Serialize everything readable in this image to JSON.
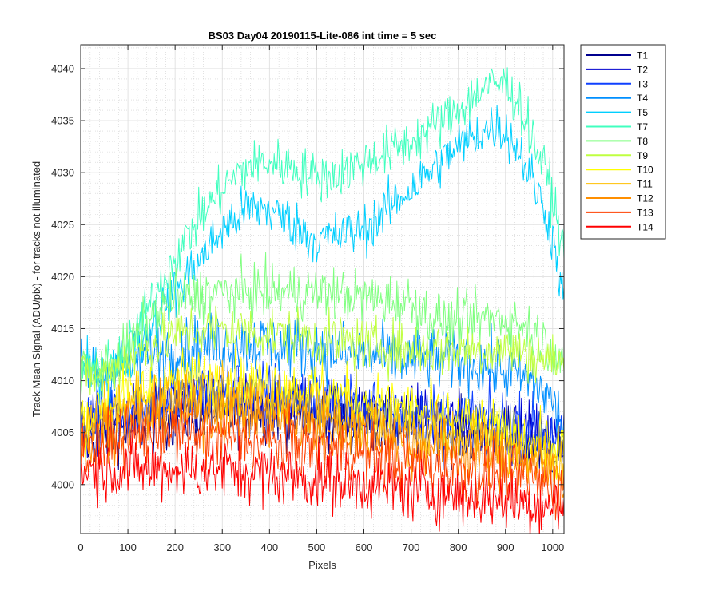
{
  "chart_data": {
    "type": "line",
    "title": "BS03 Day04 20190115-Lite-086 int time = 5 sec",
    "xlabel": "Pixels",
    "ylabel": "Track Mean Signal (ADU/pix) - for tracks not illuminated",
    "xlim": [
      0,
      1024
    ],
    "ylim": [
      3995.3,
      4042.3
    ],
    "xticks": [
      0,
      100,
      200,
      300,
      400,
      500,
      600,
      700,
      800,
      900,
      1000
    ],
    "yticks": [
      4000,
      4005,
      4010,
      4015,
      4020,
      4025,
      4030,
      4035,
      4040
    ],
    "grid": "major and minor",
    "legend_position": "outside right",
    "series": [
      {
        "name": "T1",
        "color": "#00008f",
        "noise": 1.5,
        "x": [
          0,
          50,
          100,
          200,
          300,
          400,
          500,
          600,
          700,
          800,
          900,
          1000,
          1024
        ],
        "y": [
          4004,
          4005,
          4005.5,
          4006.5,
          4007,
          4007,
          4006.5,
          4006,
          4005.5,
          4005,
          4004.5,
          4003.5,
          4003
        ]
      },
      {
        "name": "T2",
        "color": "#0000cf",
        "noise": 1.5,
        "x": [
          0,
          50,
          100,
          200,
          300,
          400,
          500,
          600,
          700,
          800,
          900,
          1000,
          1024
        ],
        "y": [
          4005,
          4006,
          4006.5,
          4007.5,
          4008,
          4008,
          4007.5,
          4007,
          4006.5,
          4006,
          4005.5,
          4004.5,
          4004
        ]
      },
      {
        "name": "T3",
        "color": "#0f40ff",
        "noise": 1.5,
        "x": [
          0,
          50,
          100,
          200,
          300,
          400,
          500,
          600,
          700,
          800,
          900,
          1000,
          1024
        ],
        "y": [
          4006,
          4007,
          4007.5,
          4008.5,
          4009,
          4009,
          4008,
          4007.5,
          4007,
          4006.5,
          4006,
          4005,
          4004.5
        ]
      },
      {
        "name": "T4",
        "color": "#008fff",
        "noise": 1.5,
        "x": [
          0,
          50,
          100,
          150,
          200,
          300,
          400,
          500,
          600,
          700,
          800,
          900,
          950,
          1000,
          1024
        ],
        "y": [
          4011,
          4010.5,
          4011.5,
          4012.5,
          4013,
          4013.5,
          4013.5,
          4013,
          4012.5,
          4012,
          4012,
          4011,
          4010,
          4008,
          4005.5
        ]
      },
      {
        "name": "T5",
        "color": "#00cfff",
        "noise": 1.2,
        "x": [
          0,
          50,
          100,
          150,
          200,
          250,
          300,
          350,
          400,
          450,
          500,
          550,
          600,
          650,
          700,
          750,
          800,
          850,
          880,
          900,
          930,
          960,
          990,
          1010,
          1024
        ],
        "y": [
          4011,
          4011,
          4012,
          4015.5,
          4018.5,
          4021.5,
          4024.5,
          4026.5,
          4026.5,
          4025,
          4023.5,
          4024,
          4024.5,
          4026.5,
          4028.5,
          4030.5,
          4032.5,
          4034,
          4034.5,
          4034,
          4032,
          4029,
          4025.5,
          4021.5,
          4017
        ]
      },
      {
        "name": "T7",
        "color": "#40ffbf",
        "noise": 1.2,
        "x": [
          0,
          50,
          100,
          150,
          200,
          250,
          300,
          350,
          400,
          450,
          500,
          550,
          600,
          650,
          700,
          750,
          800,
          850,
          880,
          900,
          930,
          960,
          990,
          1010,
          1024
        ],
        "y": [
          4011,
          4011,
          4013,
          4017.5,
          4022,
          4025.5,
          4028.5,
          4030.5,
          4031,
          4030.5,
          4029.5,
          4030,
          4031,
          4032,
          4033,
          4034.5,
          4036,
          4038,
          4038.5,
          4038.5,
          4036.5,
          4033,
          4029.5,
          4025.5,
          4022
        ]
      },
      {
        "name": "T8",
        "color": "#7fff7f",
        "noise": 1.3,
        "x": [
          0,
          50,
          100,
          150,
          200,
          300,
          400,
          500,
          600,
          700,
          750,
          800,
          850,
          900,
          950,
          1000,
          1024
        ],
        "y": [
          4011,
          4011,
          4013,
          4016,
          4018,
          4018.5,
          4018.5,
          4018.5,
          4018,
          4017.5,
          4016,
          4015.5,
          4016,
          4016,
          4015,
          4013,
          4012
        ]
      },
      {
        "name": "T9",
        "color": "#bfff40",
        "noise": 1.3,
        "x": [
          0,
          50,
          100,
          150,
          200,
          300,
          400,
          500,
          600,
          700,
          800,
          900,
          950,
          1000,
          1024
        ],
        "y": [
          4010.5,
          4010.5,
          4012,
          4013.5,
          4014.5,
          4015,
          4014.5,
          4014,
          4013.5,
          4013,
          4013,
          4013,
          4012.5,
          4012,
          4011.5
        ]
      },
      {
        "name": "T10",
        "color": "#ffff00",
        "noise": 1.5,
        "x": [
          0,
          50,
          100,
          200,
          300,
          400,
          500,
          600,
          700,
          800,
          900,
          1000,
          1024
        ],
        "y": [
          4006,
          4007.5,
          4008.5,
          4010,
          4010,
          4009.5,
          4009,
          4008,
          4007,
          4006,
          4005,
          4003.5,
          4003
        ]
      },
      {
        "name": "T11",
        "color": "#ffbf00",
        "noise": 1.5,
        "x": [
          0,
          50,
          100,
          200,
          300,
          400,
          500,
          600,
          700,
          800,
          900,
          1000,
          1024
        ],
        "y": [
          4005,
          4006.5,
          4007.5,
          4008.5,
          4008.5,
          4008,
          4007,
          4006,
          4005,
          4004.5,
          4003.5,
          4002.5,
          4002
        ]
      },
      {
        "name": "T12",
        "color": "#ff8f00",
        "noise": 1.5,
        "x": [
          0,
          50,
          100,
          200,
          300,
          400,
          500,
          600,
          700,
          800,
          900,
          1000,
          1024
        ],
        "y": [
          4004,
          4005.5,
          4006,
          4007,
          4007,
          4006.5,
          4005.5,
          4005,
          4004,
          4003,
          4002.5,
          4001.5,
          4001
        ]
      },
      {
        "name": "T13",
        "color": "#ff4000",
        "noise": 1.5,
        "x": [
          0,
          50,
          100,
          200,
          300,
          400,
          500,
          600,
          700,
          800,
          900,
          1000,
          1024
        ],
        "y": [
          4003,
          4004,
          4004.5,
          4005,
          4004.5,
          4004,
          4003.5,
          4003,
          4002,
          4001.5,
          4001,
          4000,
          3999.5
        ]
      },
      {
        "name": "T14",
        "color": "#ff0000",
        "noise": 1.5,
        "x": [
          0,
          50,
          100,
          200,
          300,
          400,
          500,
          600,
          700,
          800,
          900,
          1000,
          1024
        ],
        "y": [
          4001.5,
          4001.5,
          4001.5,
          4001.5,
          4001.5,
          4001,
          4000.5,
          4000,
          3999.5,
          3999,
          3998.5,
          3998,
          3998
        ]
      }
    ]
  }
}
